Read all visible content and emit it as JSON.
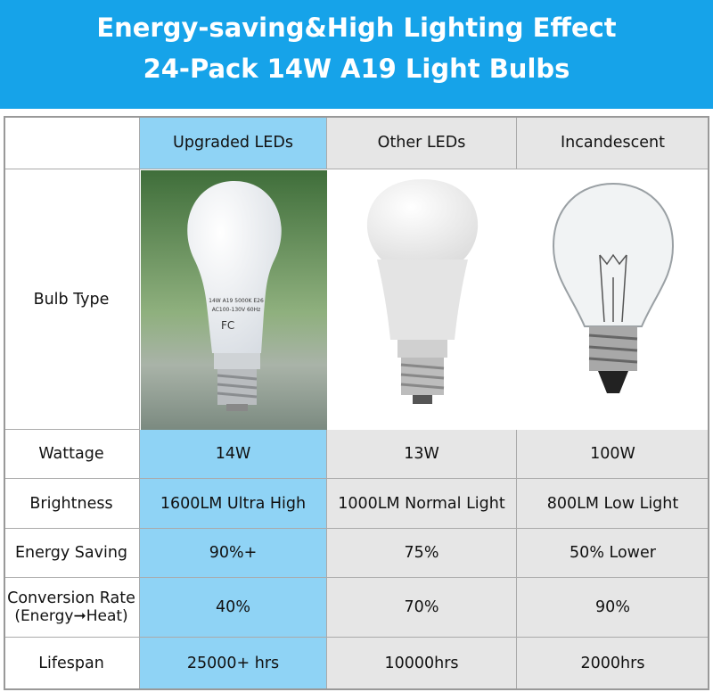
{
  "header": {
    "title_lines": [
      "Energy-saving&High Lighting Effect",
      "24-Pack 14W A19 Light Bulbs"
    ]
  },
  "table": {
    "columns": [
      "Upgraded LEDs",
      "Other LEDs",
      "Incandescent"
    ],
    "image_row_label": "Bulb Type",
    "bulb_print": [
      "14W A19 5000K E26",
      "AC100-130V 60Hz",
      "FC"
    ],
    "rows": [
      {
        "label": "Wattage",
        "values": [
          "14W",
          "13W",
          "100W"
        ]
      },
      {
        "label": "Brightness",
        "values": [
          "1600LM Ultra High",
          "1000LM Normal Light",
          "800LM Low Light"
        ]
      },
      {
        "label": "Energy Saving",
        "values": [
          "90%+",
          "75%",
          "50% Lower"
        ]
      },
      {
        "label": "Conversion Rate",
        "sublabel": "(Energy➞Heat)",
        "values": [
          "40%",
          "70%",
          "90%"
        ]
      },
      {
        "label": "Lifespan",
        "values": [
          "25000+ hrs",
          "10000hrs",
          "2000hrs"
        ]
      }
    ]
  }
}
